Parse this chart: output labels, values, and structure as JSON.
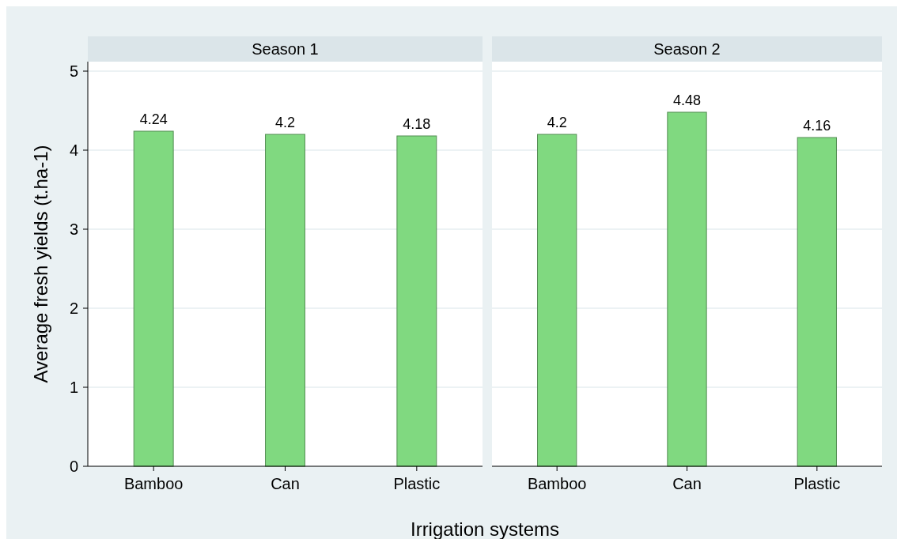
{
  "chart_data": [
    {
      "type": "bar",
      "title": "Season 1",
      "categories": [
        "Bamboo",
        "Can",
        "Plastic"
      ],
      "values": [
        4.24,
        4.2,
        4.18
      ],
      "color": "#80d980",
      "ylim": [
        0,
        5.12
      ],
      "yticks": [
        0,
        1,
        2,
        3,
        4,
        5
      ],
      "grid": "y",
      "data_labels": true,
      "ylabel": "Average fresh yields (t.ha-1)",
      "xlabel": "Irrigation systems"
    },
    {
      "type": "bar",
      "title": "Season 2",
      "categories": [
        "Bamboo",
        "Can",
        "Plastic"
      ],
      "values": [
        4.2,
        4.48,
        4.16
      ],
      "color": "#80d980",
      "ylim": [
        0,
        5.12
      ],
      "yticks": [
        0,
        1,
        2,
        3,
        4,
        5
      ],
      "grid": "y",
      "data_labels": true,
      "tick_labels": "x"
    }
  ]
}
